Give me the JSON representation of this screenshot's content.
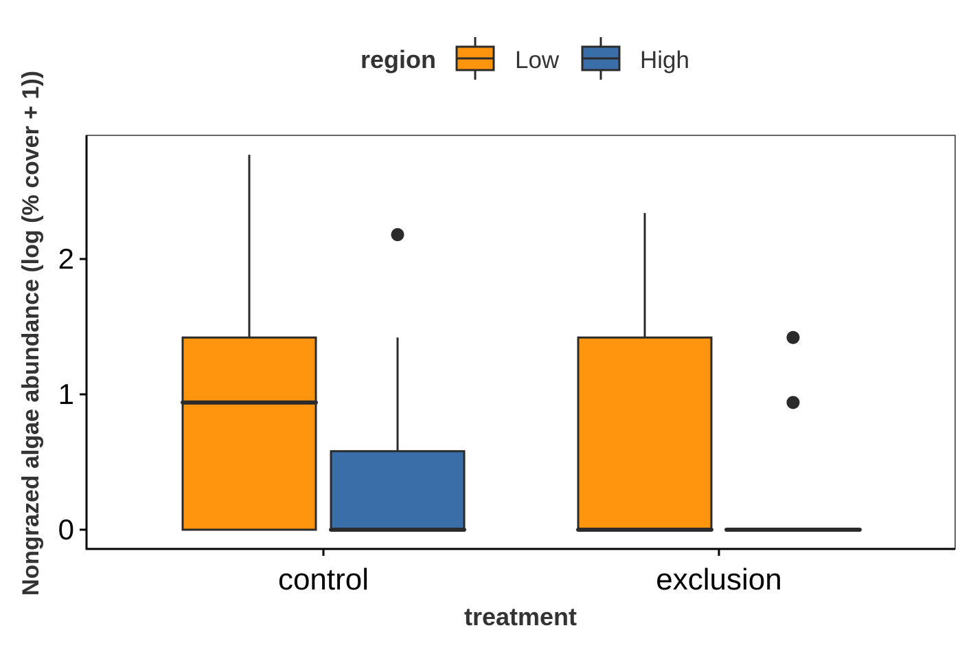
{
  "chart_data": {
    "type": "box",
    "title": "",
    "xlabel": "treatment",
    "ylabel": "Nongrazed algae abundance (log (% cover + 1))",
    "categories": [
      "control",
      "exclusion"
    ],
    "y_ticks": [
      0,
      1,
      2
    ],
    "y_tick_labels": [
      "0",
      "1",
      "2"
    ],
    "ylim": [
      -0.14,
      2.9
    ],
    "legend": {
      "title": "region",
      "placement": "top",
      "entries": [
        "Low",
        "High"
      ]
    },
    "series": [
      {
        "name": "Low",
        "color": "#FF950E",
        "boxes": [
          {
            "category": "control",
            "lower_whisker": 0,
            "q1": 0,
            "median": 0.94,
            "q3": 1.42,
            "upper_whisker": 2.77,
            "outliers": []
          },
          {
            "category": "exclusion",
            "lower_whisker": 0,
            "q1": 0,
            "median": 0,
            "q3": 1.42,
            "upper_whisker": 2.34,
            "outliers": []
          }
        ]
      },
      {
        "name": "High",
        "color": "#3A6EA8",
        "boxes": [
          {
            "category": "control",
            "lower_whisker": 0,
            "q1": 0,
            "median": 0,
            "q3": 0.58,
            "upper_whisker": 1.42,
            "outliers": [
              2.18
            ]
          },
          {
            "category": "exclusion",
            "lower_whisker": 0,
            "q1": 0,
            "median": 0,
            "q3": 0,
            "upper_whisker": 0,
            "outliers": [
              1.42,
              0.94
            ]
          }
        ]
      }
    ],
    "grid": false,
    "panel_border": true
  }
}
